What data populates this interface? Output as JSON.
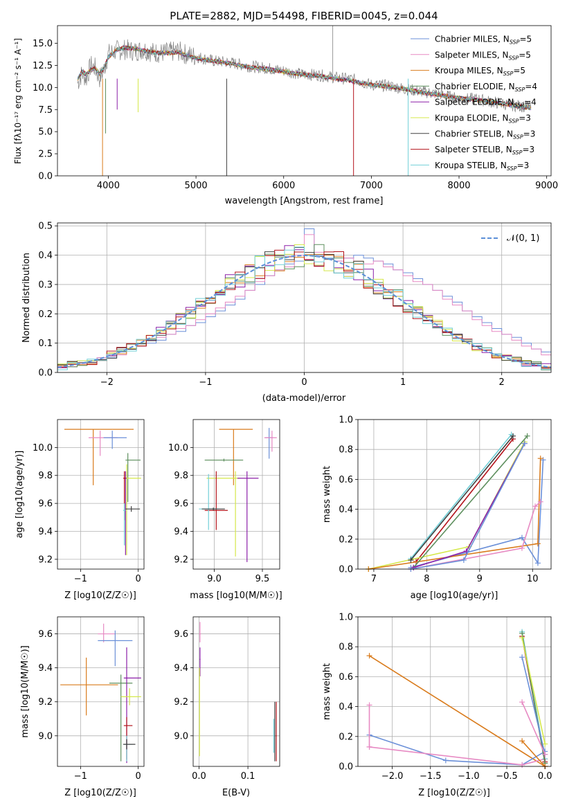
{
  "figure": {
    "title": "PLATE=2882, MJD=54498, FIBERID=0045, z=0.044"
  },
  "legend_spectrum": [
    {
      "name": "Chabrier MILES, N",
      "sub": "SSP",
      "n": "=5",
      "color": "#6a8fd8"
    },
    {
      "name": "Salpeter MILES, N",
      "sub": "SSP",
      "n": "=5",
      "color": "#e78ac3"
    },
    {
      "name": "Kroupa MILES, N",
      "sub": "SSP",
      "n": "=5",
      "color": "#d97b1c"
    },
    {
      "name": "Chabrier ELODIE, N",
      "sub": "SSP",
      "n": "=4",
      "color": "#5e8f5e"
    },
    {
      "name": "Salpeter ELODIE, N",
      "sub": "SSP",
      "n": "=4",
      "color": "#8b1fa8"
    },
    {
      "name": "Kroupa ELODIE, N",
      "sub": "SSP",
      "n": "=3",
      "color": "#d4e84a"
    },
    {
      "name": "Chabrier STELIB, N",
      "sub": "SSP",
      "n": "=3",
      "color": "#404040"
    },
    {
      "name": "Salpeter STELIB, N",
      "sub": "SSP",
      "n": "=3",
      "color": "#b3121a"
    },
    {
      "name": "Kroupa STELIB, N",
      "sub": "SSP",
      "n": "=3",
      "color": "#72d0d8"
    }
  ],
  "legend_hist": {
    "label": "𝒩(0, 1)",
    "color": "#5b8fd8"
  },
  "chart_data": [
    {
      "id": "spectrum",
      "type": "line",
      "title": "PLATE=2882, MJD=54498, FIBERID=0045, z=0.044",
      "xlabel": "wavelength [Angstrom, rest frame]",
      "ylabel": "Flux [fλ10⁻¹⁷ erg cm⁻² s⁻¹ A⁻¹]",
      "xlim": [
        3420,
        9050
      ],
      "ylim": [
        0,
        17
      ],
      "xticks": [
        4000,
        5000,
        6000,
        7000,
        8000,
        9000
      ],
      "yticks": [
        0.0,
        2.5,
        5.0,
        7.5,
        10.0,
        12.5,
        15.0
      ],
      "data_x": [
        3650,
        3700,
        3750,
        3800,
        3850,
        3900,
        3950,
        4000,
        4100,
        4200,
        4300,
        4400,
        4500,
        4600,
        4700,
        4800,
        4900,
        5000,
        5200,
        5400,
        5600,
        5800,
        6000,
        6200,
        6400,
        6600,
        6800,
        7000,
        7200,
        7400,
        7600,
        7800,
        8000,
        8200,
        8400,
        8600,
        8800
      ],
      "data_y": [
        10.5,
        11.6,
        11.0,
        12.5,
        12.2,
        11.0,
        12.0,
        13.8,
        14.2,
        14.3,
        14.1,
        14.3,
        14.0,
        13.9,
        14.0,
        14.1,
        13.7,
        13.5,
        13.0,
        12.8,
        12.4,
        12.2,
        11.9,
        11.5,
        11.4,
        11.1,
        10.9,
        10.3,
        10.2,
        9.8,
        9.5,
        9.2,
        8.7,
        8.7,
        8.3,
        8.0,
        7.8
      ],
      "model_y": [
        11.0,
        11.8,
        11.5,
        12.0,
        12.2,
        11.5,
        12.2,
        13.4,
        14.3,
        14.5,
        14.4,
        14.2,
        14.0,
        13.9,
        13.9,
        14.0,
        13.6,
        13.3,
        13.0,
        12.7,
        12.3,
        12.1,
        11.8,
        11.5,
        11.3,
        11.0,
        10.7,
        10.3,
        10.1,
        9.8,
        9.4,
        9.1,
        8.8,
        8.6,
        8.3,
        8.0,
        7.7
      ]
    },
    {
      "id": "residual-histogram",
      "type": "histogram",
      "xlabel": "(data-model)/error",
      "ylabel": "Normed distribution",
      "xlim": [
        -2.5,
        2.5
      ],
      "ylim": [
        0,
        0.51
      ],
      "xticks": [
        -2,
        -1,
        0,
        1,
        2
      ],
      "yticks": [
        0.0,
        0.1,
        0.2,
        0.3,
        0.4,
        0.5
      ],
      "bin_width": 0.1,
      "series": [
        {
          "name": "Chabrier MILES",
          "values": [
            0.02,
            0.03,
            0.04,
            0.04,
            0.05,
            0.05,
            0.07,
            0.08,
            0.09,
            0.1,
            0.11,
            0.13,
            0.14,
            0.16,
            0.17,
            0.19,
            0.21,
            0.23,
            0.25,
            0.28,
            0.3,
            0.33,
            0.35,
            0.37,
            0.38,
            0.49,
            0.4,
            0.39,
            0.38,
            0.39,
            0.4,
            0.39,
            0.38,
            0.37,
            0.35,
            0.34,
            0.32,
            0.3,
            0.28,
            0.26,
            0.24,
            0.21,
            0.19,
            0.17,
            0.15,
            0.13,
            0.12,
            0.1,
            0.08,
            0.07
          ]
        },
        {
          "name": "Salpeter MILES",
          "values": [
            0.02,
            0.02,
            0.03,
            0.04,
            0.05,
            0.06,
            0.06,
            0.08,
            0.09,
            0.11,
            0.12,
            0.13,
            0.15,
            0.16,
            0.18,
            0.2,
            0.22,
            0.24,
            0.26,
            0.28,
            0.31,
            0.33,
            0.35,
            0.36,
            0.4,
            0.47,
            0.41,
            0.4,
            0.38,
            0.39,
            0.38,
            0.37,
            0.38,
            0.36,
            0.35,
            0.33,
            0.31,
            0.3,
            0.28,
            0.25,
            0.23,
            0.21,
            0.18,
            0.16,
            0.14,
            0.13,
            0.11,
            0.09,
            0.08,
            0.06
          ]
        }
      ],
      "normal_curve": "N(0,1)"
    },
    {
      "id": "age-vs-Z",
      "type": "scatter",
      "xlabel": "Z [log10(Z/Z☉)]",
      "ylabel": "age  [log10(age/yr)]",
      "xlim": [
        -1.4,
        0.1
      ],
      "ylim": [
        9.13,
        10.2
      ],
      "xticks": [
        -1,
        0
      ],
      "yticks": [
        9.2,
        9.4,
        9.6,
        9.8,
        10.0
      ]
    },
    {
      "id": "age-vs-mass",
      "type": "scatter",
      "xlabel": "mass [log10(M/M☉)]",
      "ylabel": "",
      "xlim": [
        8.78,
        9.68
      ],
      "ylim": [
        9.13,
        10.2
      ],
      "xticks": [
        9.0,
        9.5
      ],
      "yticks": [
        9.2,
        9.4,
        9.6,
        9.8,
        10.0
      ]
    },
    {
      "id": "massweight-vs-age",
      "type": "line",
      "xlabel": "age  [log10(age/yr)]",
      "ylabel": "mass weight",
      "xlim": [
        6.7,
        10.35
      ],
      "ylim": [
        0,
        1
      ],
      "xticks": [
        7,
        8,
        9,
        10
      ],
      "yticks": [
        0.0,
        0.2,
        0.4,
        0.6,
        0.8,
        1.0
      ],
      "series": [
        {
          "name": "Chabrier STELIB",
          "x": [
            7.7,
            9.6
          ],
          "y": [
            0.07,
            0.9
          ]
        },
        {
          "name": "Salpeter STELIB",
          "x": [
            7.8,
            9.63
          ],
          "y": [
            0.05,
            0.87
          ]
        },
        {
          "name": "Kroupa ELODIE",
          "x": [
            6.9,
            8.8,
            9.85
          ],
          "y": [
            0.0,
            0.15,
            0.85
          ]
        },
        {
          "name": "Chabrier MILES",
          "x": [
            7.7,
            9.8,
            10.1,
            10.2
          ],
          "y": [
            0.01,
            0.21,
            0.04,
            0.73
          ]
        },
        {
          "name": "Kroupa MILES",
          "x": [
            6.9,
            10.1,
            10.15
          ],
          "y": [
            0.0,
            0.17,
            0.74
          ]
        }
      ]
    },
    {
      "id": "mass-vs-Z",
      "type": "scatter",
      "xlabel": "Z [log10(Z/Z☉)]",
      "ylabel": "mass [log10(M/M☉)]",
      "xlim": [
        -1.4,
        0.1
      ],
      "ylim": [
        8.82,
        9.7
      ],
      "xticks": [
        -1,
        0
      ],
      "yticks": [
        9.0,
        9.2,
        9.4,
        9.6
      ]
    },
    {
      "id": "mass-vs-ebv",
      "type": "scatter",
      "xlabel": "E(B-V)",
      "ylabel": "",
      "xlim": [
        -0.012,
        0.165
      ],
      "ylim": [
        8.82,
        9.7
      ],
      "xticks": [
        0.0,
        0.1
      ],
      "yticks": [
        9.0,
        9.2,
        9.4,
        9.6
      ]
    },
    {
      "id": "massweight-vs-Z",
      "type": "line",
      "xlabel": "Z [log10(Z/Z☉)]",
      "ylabel": "mass weight",
      "xlim": [
        -2.45,
        0.08
      ],
      "ylim": [
        0,
        1
      ],
      "xticks": [
        -2.0,
        -1.5,
        -1.0,
        -0.5,
        0.0
      ],
      "yticks": [
        0.0,
        0.2,
        0.4,
        0.6,
        0.8,
        1.0
      ],
      "series": [
        {
          "name": "Kroupa MILES",
          "x": [
            -2.3,
            0.0
          ],
          "y": [
            0.74,
            0.0
          ]
        },
        {
          "name": "Chabrier MILES",
          "x": [
            -2.3,
            -1.3,
            -0.3,
            0.0
          ],
          "y": [
            0.21,
            0.04,
            0.01,
            0.1
          ]
        },
        {
          "name": "Salpeter MILES",
          "x": [
            -2.3,
            -0.3,
            0.0
          ],
          "y": [
            0.13,
            0.01,
            0.05
          ]
        },
        {
          "name": "Kroupa STELIB",
          "x": [
            -0.3,
            0.0
          ],
          "y": [
            0.9,
            0.05
          ]
        },
        {
          "name": "Salpeter STELIB",
          "x": [
            -0.3,
            0.0
          ],
          "y": [
            0.87,
            0.03
          ]
        }
      ]
    }
  ]
}
